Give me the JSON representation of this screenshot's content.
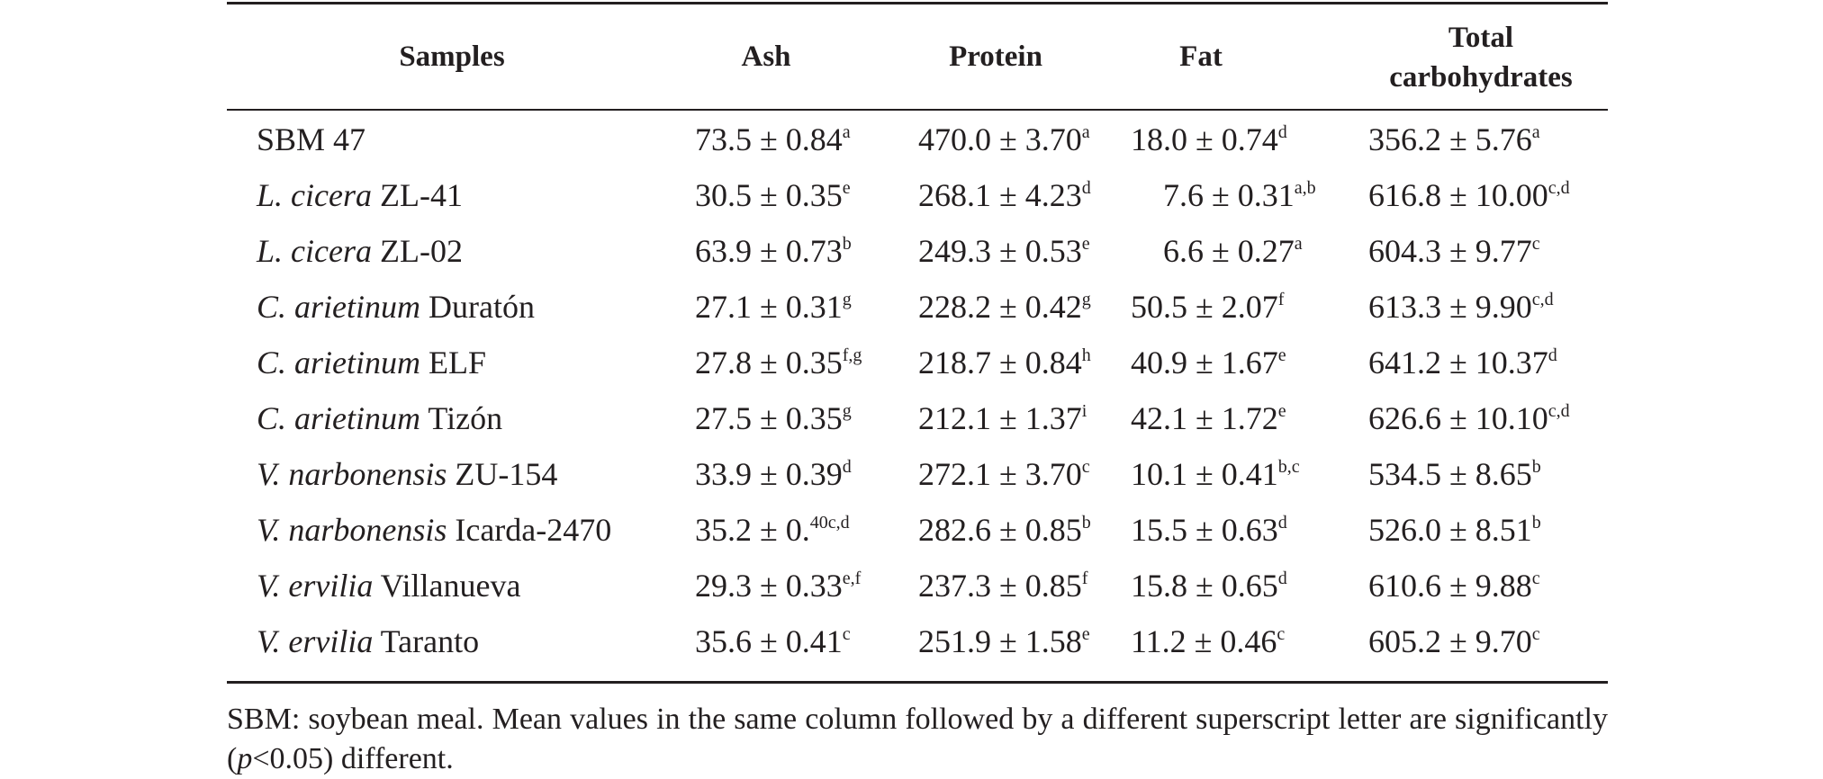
{
  "table": {
    "headers": {
      "samples": "Samples",
      "ash": "Ash",
      "protein": "Protein",
      "fat": "Fat",
      "carb_line1": "Total",
      "carb_line2": "carbohydrates"
    },
    "rows": [
      {
        "species": "",
        "cultivar": "SBM 47",
        "ash": "73.5 ± 0.84",
        "ash_sup": "a",
        "protein": "470.0 ± 3.70",
        "protein_sup": "a",
        "fat": "18.0 ± 0.74",
        "fat_sup": "d",
        "carb": "356.2 ± 5.76",
        "carb_sup": "a"
      },
      {
        "species": "L. cicera",
        "cultivar": " ZL-41",
        "ash": "30.5 ± 0.35",
        "ash_sup": "e",
        "protein": "268.1 ± 4.23",
        "protein_sup": "d",
        "fat": "7.6 ± 0.31",
        "fat_sup": "a,b",
        "carb": "616.8 ± 10.00",
        "carb_sup": "c,d"
      },
      {
        "species": "L. cicera",
        "cultivar": " ZL-02",
        "ash": "63.9 ± 0.73",
        "ash_sup": "b",
        "protein": "249.3 ± 0.53",
        "protein_sup": "e",
        "fat": "6.6 ± 0.27",
        "fat_sup": "a",
        "carb": "604.3 ± 9.77",
        "carb_sup": "c"
      },
      {
        "species": "C. arietinum",
        "cultivar": " Duratón",
        "ash": "27.1 ± 0.31",
        "ash_sup": "g",
        "protein": "228.2 ± 0.42",
        "protein_sup": "g",
        "fat": "50.5 ± 2.07",
        "fat_sup": "f",
        "carb": "613.3 ± 9.90",
        "carb_sup": "c,d"
      },
      {
        "species": "C. arietinum",
        "cultivar": " ELF",
        "ash": "27.8 ± 0.35",
        "ash_sup": "f,g",
        "protein": "218.7 ± 0.84",
        "protein_sup": "h",
        "fat": "40.9 ± 1.67",
        "fat_sup": "e",
        "carb": "641.2 ± 10.37",
        "carb_sup": "d"
      },
      {
        "species": "C. arietinum",
        "cultivar": " Tizón",
        "ash": "27.5 ± 0.35",
        "ash_sup": "g",
        "protein": "212.1 ± 1.37",
        "protein_sup": "i",
        "fat": "42.1 ± 1.72",
        "fat_sup": "e",
        "carb": "626.6 ± 10.10",
        "carb_sup": "c,d"
      },
      {
        "species": "V. narbonensis",
        "cultivar": " ZU-154",
        "ash": "33.9 ± 0.39",
        "ash_sup": "d",
        "protein": "272.1 ± 3.70",
        "protein_sup": "c",
        "fat": "10.1 ± 0.41",
        "fat_sup": "b,c",
        "carb": "534.5 ± 8.65",
        "carb_sup": "b"
      },
      {
        "species": "V. narbonensis",
        "cultivar": " Icarda-2470",
        "ash": "35.2 ± 0.",
        "ash_sup": "40c,d",
        "protein": "282.6 ± 0.85",
        "protein_sup": "b",
        "fat": "15.5 ± 0.63",
        "fat_sup": "d",
        "carb": "526.0 ± 8.51",
        "carb_sup": "b"
      },
      {
        "species": "V. ervilia",
        "cultivar": " Villanueva",
        "ash": "29.3 ± 0.33",
        "ash_sup": "e,f",
        "protein": "237.3 ± 0.85",
        "protein_sup": "f",
        "fat": "15.8 ± 0.65",
        "fat_sup": "d",
        "carb": "610.6 ± 9.88",
        "carb_sup": "c"
      },
      {
        "species": "V. ervilia",
        "cultivar": " Taranto",
        "ash": "35.6 ± 0.41",
        "ash_sup": "c",
        "protein": "251.9 ± 1.58",
        "protein_sup": "e",
        "fat": "11.2 ± 0.46",
        "fat_sup": "c",
        "carb": "605.2 ± 9.70",
        "carb_sup": "c"
      }
    ]
  },
  "footnote": {
    "part1": "SBM: soybean meal. Mean values in the same column followed by a different superscript letter are significantly (",
    "p_symbol": "p",
    "part2": "<0.05) different."
  }
}
